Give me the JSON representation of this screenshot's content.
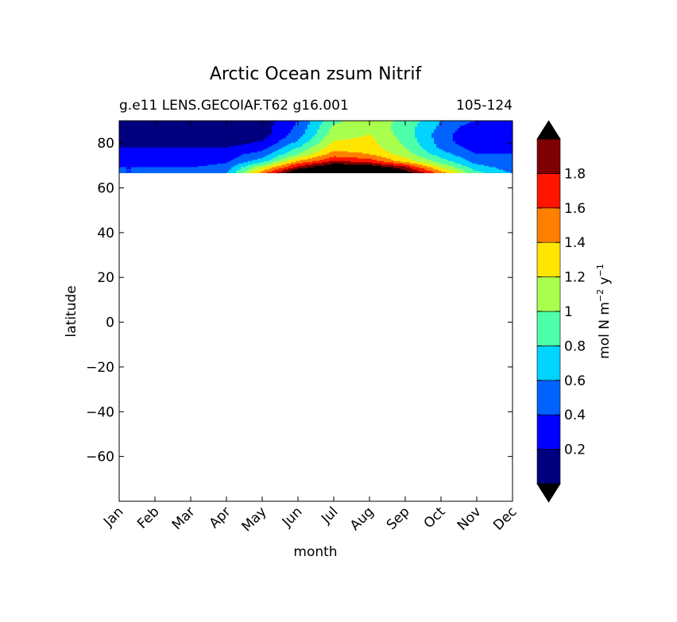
{
  "chart_data": {
    "type": "heatmap",
    "title": "Arctic Ocean zsum Nitrif",
    "subtitle_left": "g.e11 LENS.GECOIAF.T62 g16.001",
    "subtitle_right": "105-124",
    "xlabel": "month",
    "ylabel": "latitude",
    "x_categories": [
      "Jan",
      "Feb",
      "Mar",
      "Apr",
      "May",
      "Jun",
      "Jul",
      "Aug",
      "Sep",
      "Oct",
      "Nov",
      "Dec"
    ],
    "xlim": [
      0,
      11
    ],
    "ylim": [
      -80,
      90
    ],
    "y_ticks": [
      80,
      60,
      40,
      20,
      0,
      -20,
      -40,
      -60
    ],
    "y_tick_labels": [
      "80",
      "60",
      "40",
      "20",
      "0",
      "−20",
      "−40",
      "−60"
    ],
    "data_lat_range": [
      66,
      90
    ],
    "colorbar": {
      "label_parts": [
        "mol N m",
        "−2",
        " y",
        "−1"
      ],
      "levels": [
        0,
        0.2,
        0.4,
        0.6,
        0.8,
        1.0,
        1.2,
        1.4,
        1.6,
        1.8,
        2.0
      ],
      "tick_values": [
        0.2,
        0.4,
        0.6,
        0.8,
        1.0,
        1.2,
        1.4,
        1.6,
        1.8
      ],
      "tick_labels": [
        "0.2",
        "0.4",
        "0.6",
        "0.8",
        "1",
        "1.2",
        "1.4",
        "1.6",
        "1.8"
      ],
      "colors": [
        "#00007f",
        "#0000ff",
        "#0063ff",
        "#00d4ff",
        "#4effa9",
        "#a9ff4e",
        "#ffe500",
        "#ff7f00",
        "#ff1400",
        "#7f0000"
      ],
      "under_color": "#000000",
      "over_color": "#000000",
      "extend": "both"
    },
    "bands": [
      {
        "lat": 90,
        "values": [
          0.05,
          0.05,
          0.05,
          0.05,
          0.1,
          0.4,
          0.95,
          1.1,
          0.95,
          0.6,
          0.4,
          0.4
        ]
      },
      {
        "lat": 87,
        "values": [
          0.05,
          0.05,
          0.05,
          0.05,
          0.1,
          0.45,
          1.05,
          1.15,
          0.9,
          0.55,
          0.25,
          0.3
        ]
      },
      {
        "lat": 84,
        "values": [
          0.05,
          0.05,
          0.05,
          0.05,
          0.1,
          0.5,
          1.1,
          1.2,
          0.9,
          0.5,
          0.2,
          0.25
        ]
      },
      {
        "lat": 81,
        "values": [
          0.1,
          0.1,
          0.1,
          0.1,
          0.2,
          0.6,
          1.2,
          1.25,
          0.95,
          0.5,
          0.2,
          0.25
        ]
      },
      {
        "lat": 78,
        "values": [
          0.2,
          0.2,
          0.2,
          0.2,
          0.3,
          0.8,
          1.3,
          1.3,
          1.0,
          0.55,
          0.3,
          0.3
        ]
      },
      {
        "lat": 75,
        "values": [
          0.3,
          0.3,
          0.3,
          0.3,
          0.5,
          1.0,
          1.5,
          1.4,
          1.1,
          0.7,
          0.4,
          0.4
        ]
      },
      {
        "lat": 72,
        "values": [
          0.3,
          0.3,
          0.3,
          0.35,
          0.7,
          1.4,
          1.8,
          1.7,
          1.3,
          0.9,
          0.5,
          0.4
        ]
      },
      {
        "lat": 69,
        "values": [
          0.4,
          0.4,
          0.4,
          0.5,
          1.2,
          1.9,
          2.3,
          2.2,
          1.9,
          1.2,
          0.7,
          0.5
        ]
      },
      {
        "lat": 66,
        "values": [
          0.4,
          0.4,
          0.4,
          0.6,
          1.6,
          2.4,
          2.6,
          2.5,
          2.2,
          1.6,
          0.9,
          0.6
        ]
      }
    ]
  }
}
